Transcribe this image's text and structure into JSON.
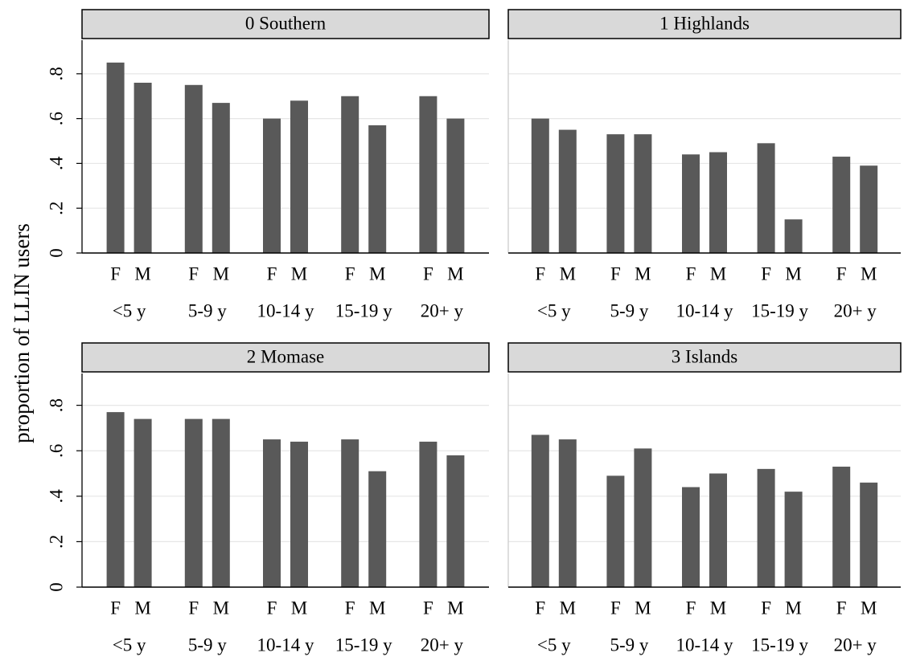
{
  "y_label": "proportion of LLIN users",
  "chart_data": [
    {
      "type": "bar",
      "title": "0 Southern",
      "categories": [
        "<5 y",
        "5-9 y",
        "10-14 y",
        "15-19 y",
        "20+ y"
      ],
      "series": [
        {
          "name": "F",
          "color": "#595959",
          "values": [
            0.85,
            0.75,
            0.6,
            0.7,
            0.7
          ]
        },
        {
          "name": "M",
          "color": "#595959",
          "values": [
            0.76,
            0.67,
            0.68,
            0.57,
            0.6
          ]
        }
      ],
      "ylim": [
        0,
        0.95
      ],
      "yticks": [
        0,
        {
          "value": 0.2,
          "label": ".2"
        },
        {
          "value": 0.4,
          "label": ".4"
        },
        {
          "value": 0.6,
          "label": ".6"
        },
        {
          "value": 0.8,
          "label": ".8"
        }
      ],
      "grid": true
    },
    {
      "type": "bar",
      "title": "1 Highlands",
      "categories": [
        "<5 y",
        "5-9 y",
        "10-14 y",
        "15-19 y",
        "20+ y"
      ],
      "series": [
        {
          "name": "F",
          "color": "#595959",
          "values": [
            0.6,
            0.53,
            0.44,
            0.49,
            0.43
          ]
        },
        {
          "name": "M",
          "color": "#595959",
          "values": [
            0.55,
            0.53,
            0.45,
            0.15,
            0.39
          ]
        }
      ],
      "ylim": [
        0,
        0.95
      ],
      "yticks": [
        0,
        0.2,
        0.4,
        0.6,
        0.8
      ],
      "grid": true
    },
    {
      "type": "bar",
      "title": "2 Momase",
      "categories": [
        "<5 y",
        "5-9 y",
        "10-14 y",
        "15-19 y",
        "20+ y"
      ],
      "series": [
        {
          "name": "F",
          "color": "#595959",
          "values": [
            0.77,
            0.74,
            0.65,
            0.65,
            0.64
          ]
        },
        {
          "name": "M",
          "color": "#595959",
          "values": [
            0.74,
            0.74,
            0.64,
            0.51,
            0.58
          ]
        }
      ],
      "ylim": [
        0,
        0.94
      ],
      "yticks": [
        0,
        {
          "value": 0.2,
          "label": ".2"
        },
        {
          "value": 0.4,
          "label": ".4"
        },
        {
          "value": 0.6,
          "label": ".6"
        },
        {
          "value": 0.8,
          "label": ".8"
        }
      ],
      "grid": true
    },
    {
      "type": "bar",
      "title": "3 Islands",
      "categories": [
        "<5 y",
        "5-9 y",
        "10-14 y",
        "15-19 y",
        "20+ y"
      ],
      "series": [
        {
          "name": "F",
          "color": "#595959",
          "values": [
            0.67,
            0.49,
            0.44,
            0.52,
            0.53
          ]
        },
        {
          "name": "M",
          "color": "#595959",
          "values": [
            0.65,
            0.61,
            0.5,
            0.42,
            0.46
          ]
        }
      ],
      "ylim": [
        0,
        0.94
      ],
      "yticks": [
        0,
        0.2,
        0.4,
        0.6,
        0.8
      ],
      "grid": true
    }
  ]
}
